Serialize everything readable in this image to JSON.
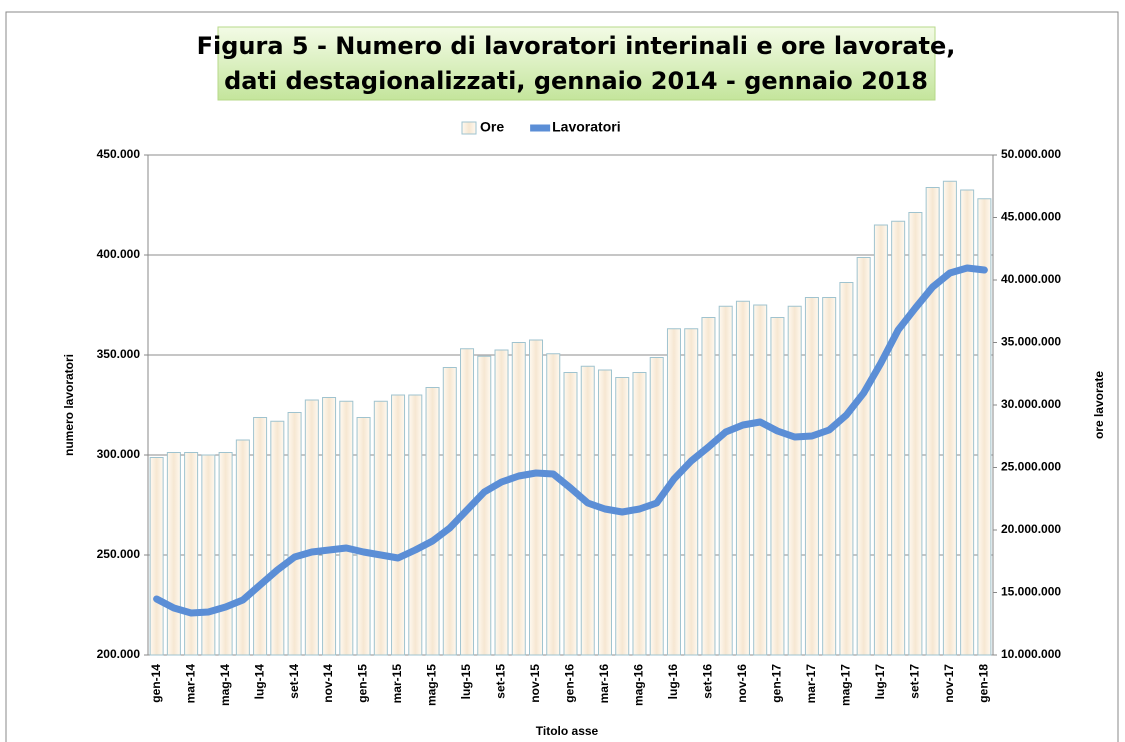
{
  "chart_data": {
    "type": "combo",
    "title": [
      "Figura 5 - Numero di lavoratori interinali e ore lavorate,",
      "dati destagionalizzati, gennaio 2014 - gennaio 2018"
    ],
    "ylabel": "numero lavoratori",
    "y2label": "ore lavorate",
    "xlabel": "Titolo asse",
    "grid": true,
    "legend": "top",
    "categories": [
      "gen-14",
      null,
      "mar-14",
      null,
      "mag-14",
      null,
      "lug-14",
      null,
      "set-14",
      null,
      "nov-14",
      null,
      "gen-15",
      null,
      "mar-15",
      null,
      "mag-15",
      null,
      "lug-15",
      null,
      "set-15",
      null,
      "nov-15",
      null,
      "gen-16",
      null,
      "mar-16",
      null,
      "mag-16",
      null,
      "lug-16",
      null,
      "set-16",
      null,
      "nov-16",
      null,
      "gen-17",
      null,
      "mar-17",
      null,
      "mag-17",
      null,
      "lug-17",
      null,
      "set-17",
      null,
      "nov-17",
      null,
      "gen-18"
    ],
    "ylim": [
      200000,
      450000
    ],
    "yticks": [
      {
        "value": 200000,
        "label": "200.000"
      },
      {
        "value": 250000,
        "label": "250.000"
      },
      {
        "value": 300000,
        "label": "300.000"
      },
      {
        "value": 350000,
        "label": "350.000"
      },
      {
        "value": 400000,
        "label": "400.000"
      },
      {
        "value": 450000,
        "label": "450.000"
      }
    ],
    "y2lim": [
      10000000,
      50000000
    ],
    "y2ticks": [
      {
        "value": 10000000,
        "label": "10.000.000"
      },
      {
        "value": 15000000,
        "label": "15.000.000"
      },
      {
        "value": 20000000,
        "label": "20.000.000"
      },
      {
        "value": 25000000,
        "label": "25.000.000"
      },
      {
        "value": 30000000,
        "label": "30.000.000"
      },
      {
        "value": 35000000,
        "label": "35.000.000"
      },
      {
        "value": 40000000,
        "label": "40.000.000"
      },
      {
        "value": 45000000,
        "label": "45.000.000"
      },
      {
        "value": 50000000,
        "label": "50.000.000"
      }
    ],
    "series": [
      {
        "name": "Ore",
        "type": "bar",
        "axis": "y2",
        "color": "#fbeedd",
        "values": [
          25800000,
          26200000,
          26200000,
          26000000,
          26200000,
          27200000,
          29000000,
          28700000,
          29400000,
          30400000,
          30600000,
          30300000,
          29000000,
          30300000,
          30800000,
          30800000,
          31400000,
          33000000,
          34500000,
          33900000,
          34400000,
          35000000,
          35200000,
          34100000,
          32600000,
          33100000,
          32800000,
          32200000,
          32600000,
          33800000,
          36100000,
          36100000,
          37000000,
          37900000,
          38300000,
          38000000,
          37000000,
          37900000,
          38600000,
          38600000,
          39800000,
          41800000,
          44400000,
          44700000,
          45400000,
          47400000,
          47900000,
          47200000,
          46500000
        ]
      },
      {
        "name": "Lavoratori",
        "type": "line",
        "axis": "y",
        "color": "#5b8ed6",
        "values": [
          228000,
          223500,
          221000,
          221500,
          224000,
          227500,
          235000,
          242500,
          249000,
          251500,
          252500,
          253500,
          251500,
          250000,
          248500,
          252500,
          257000,
          263500,
          272500,
          281500,
          286500,
          289500,
          291000,
          290500,
          283500,
          276000,
          273000,
          271500,
          273000,
          276000,
          288000,
          297000,
          304000,
          311500,
          315000,
          316500,
          312000,
          309000,
          309500,
          312500,
          320000,
          331000,
          346000,
          362500,
          373500,
          384000,
          391000,
          393500,
          392500
        ]
      }
    ]
  }
}
